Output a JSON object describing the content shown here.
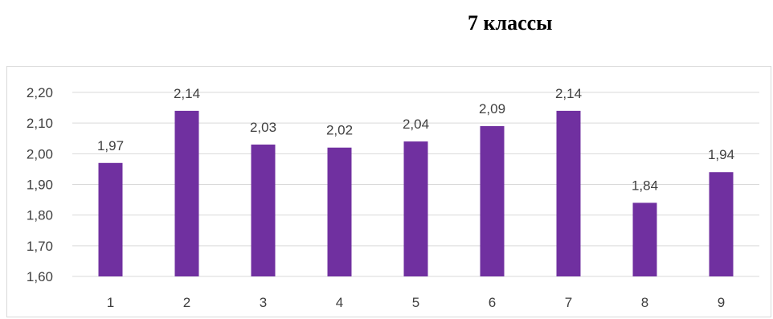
{
  "chart_data": {
    "type": "bar",
    "title": "7 классы",
    "xlabel": "",
    "ylabel": "",
    "categories": [
      "1",
      "2",
      "3",
      "4",
      "5",
      "6",
      "7",
      "8",
      "9"
    ],
    "values": [
      1.97,
      2.14,
      2.03,
      2.02,
      2.04,
      2.09,
      2.14,
      1.84,
      1.94
    ],
    "data_labels": [
      "1,97",
      "2,14",
      "2,03",
      "2,02",
      "2,04",
      "2,09",
      "2,14",
      "1,84",
      "1,94"
    ],
    "ylim": [
      1.6,
      2.2
    ],
    "yticks": [
      1.6,
      1.7,
      1.8,
      1.9,
      2.0,
      2.1,
      2.2
    ],
    "ytick_labels": [
      "1,60",
      "1,70",
      "1,80",
      "1,90",
      "2,00",
      "2,10",
      "2,20"
    ],
    "grid": true,
    "legend": "none",
    "bar_color": "#7030a0",
    "grid_color": "#d9d9d9",
    "text_color": "#404040"
  }
}
